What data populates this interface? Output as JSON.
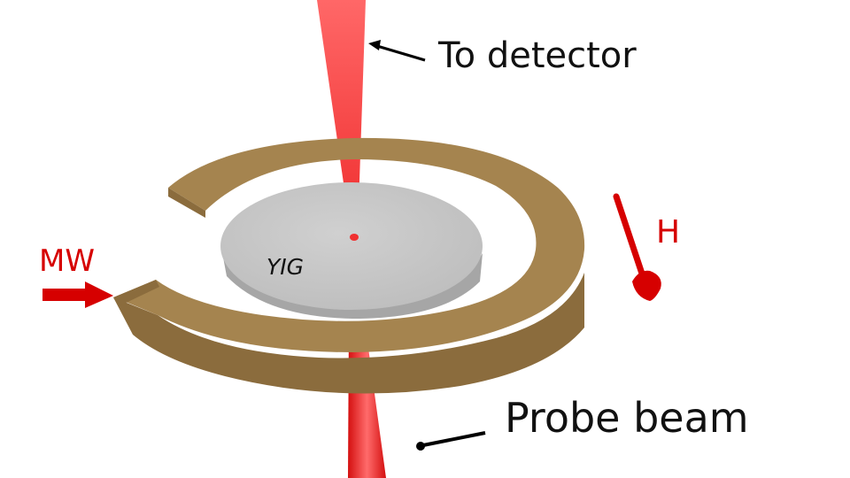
{
  "labels": {
    "to_detector": "To detector",
    "probe_beam": "Probe beam",
    "sample": "YIG",
    "microwave": "MW",
    "field": "H"
  },
  "colors": {
    "beam": "#ee1c1c",
    "annotation_red": "#d60000",
    "resonator": "#a5844f",
    "resonator_side": "#8a6c3c",
    "disk_top": "#c6c6c6",
    "disk_edge": "#a6a6a6",
    "text": "#111111"
  }
}
